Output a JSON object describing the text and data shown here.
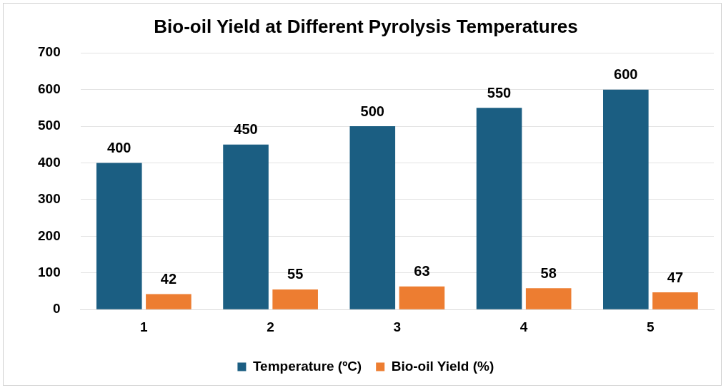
{
  "chart_data": {
    "type": "bar",
    "title": "Bio-oil Yield at Different Pyrolysis Temperatures",
    "categories": [
      "1",
      "2",
      "3",
      "4",
      "5"
    ],
    "series": [
      {
        "name": "Temperature (ºC)",
        "color": "#1b5e82",
        "values": [
          400,
          450,
          500,
          550,
          600
        ]
      },
      {
        "name": "Bio-oil Yield (%)",
        "color": "#ed7d31",
        "values": [
          42,
          55,
          63,
          58,
          47
        ]
      }
    ],
    "ylim": [
      0,
      700
    ],
    "yticks": [
      0,
      100,
      200,
      300,
      400,
      500,
      600,
      700
    ],
    "grid": "y",
    "legend": "bottom",
    "data_labels": true
  }
}
